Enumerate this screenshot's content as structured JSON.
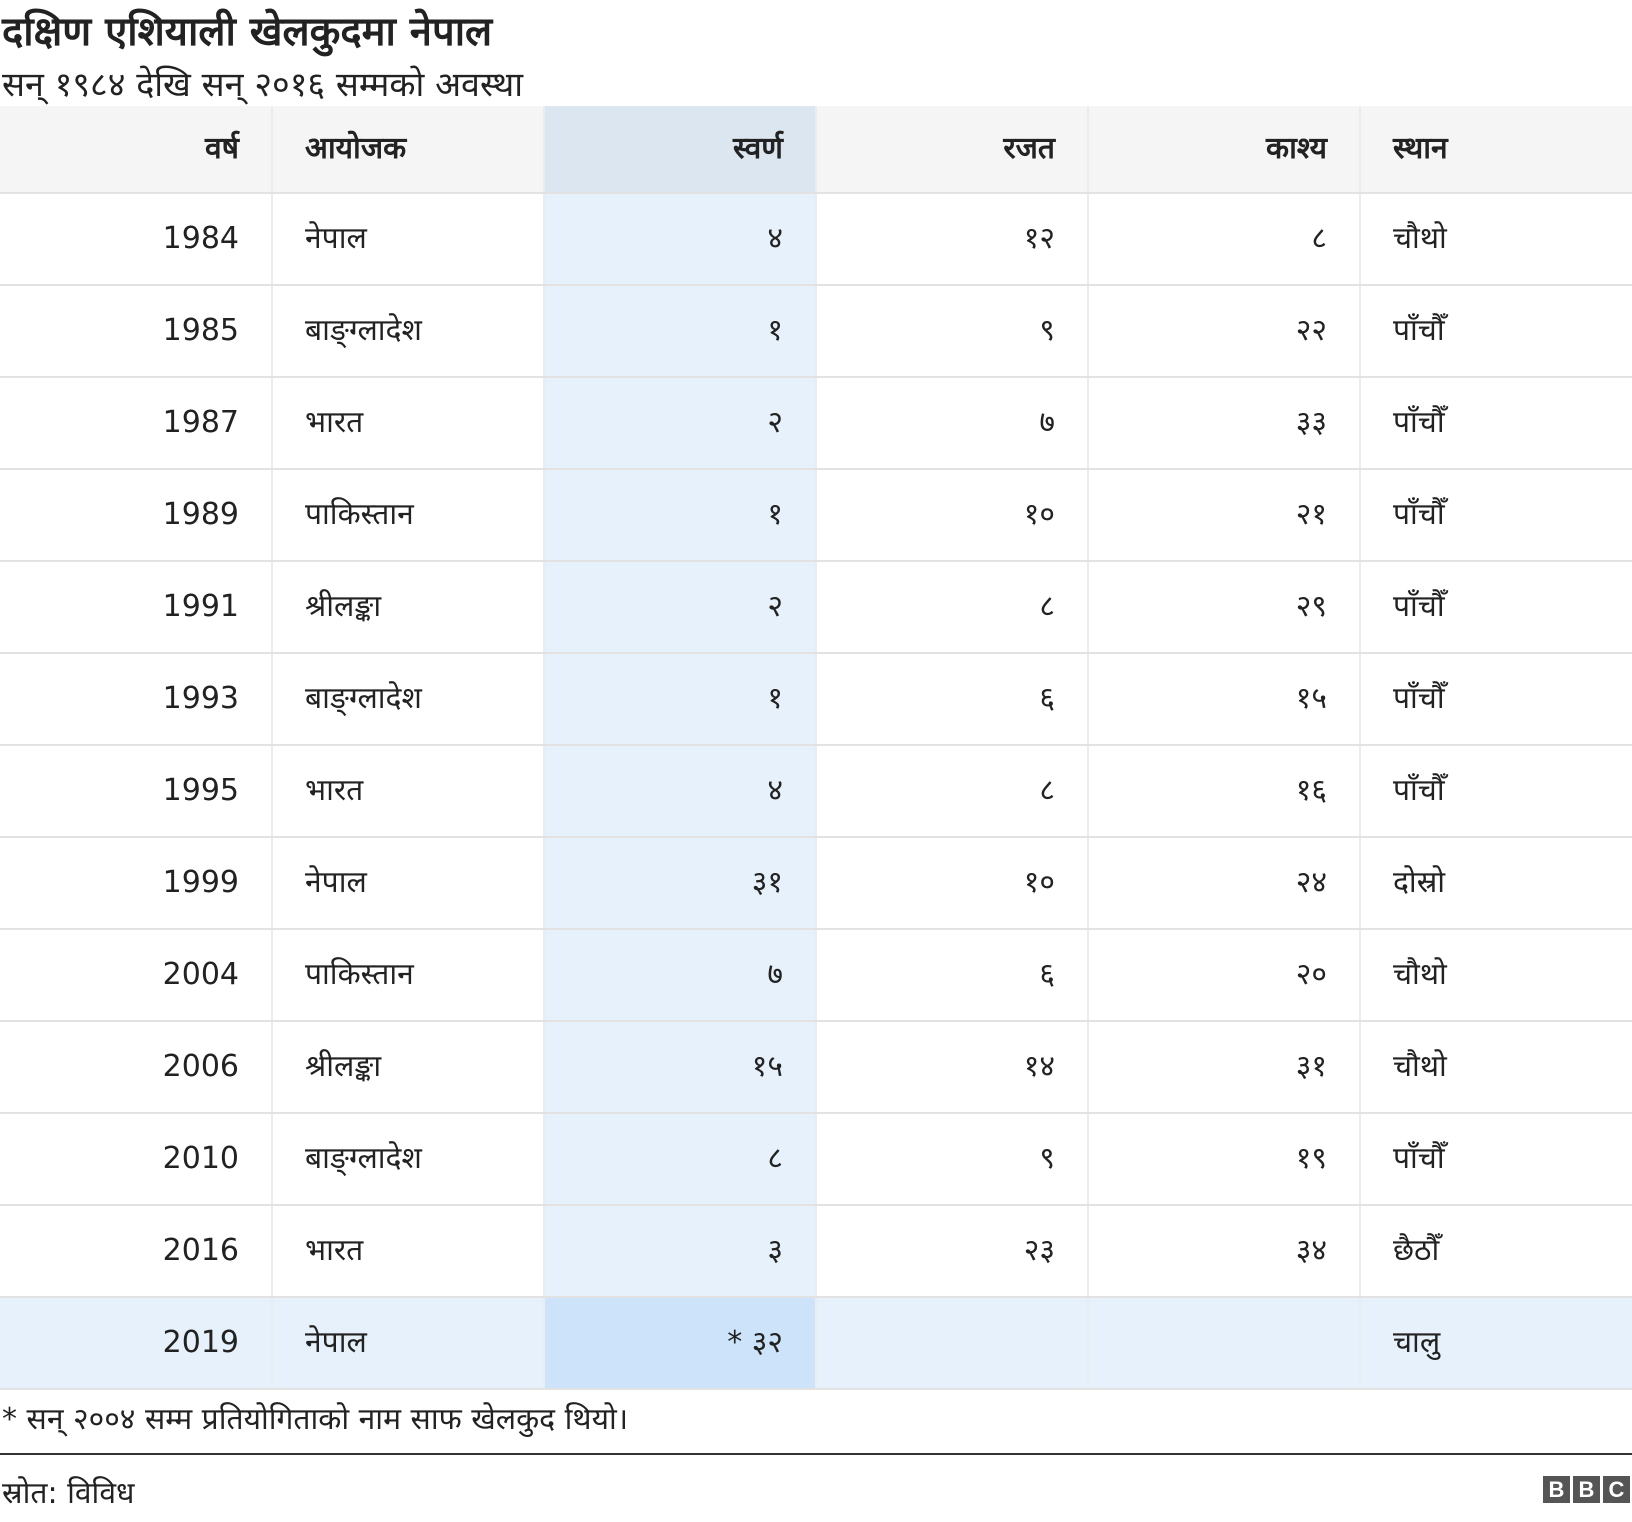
{
  "title": "दक्षिण एशियाली खेलकुदमा नेपाल",
  "subtitle": "सन् १९८४ देखि सन् २०१६ सम्मको अवस्था",
  "chart_data": {
    "type": "table",
    "columns": [
      "वर्ष",
      "आयोजक",
      "स्वर्ण",
      "रजत",
      "काश्य",
      "स्थान"
    ],
    "highlighted_column": "स्वर्ण",
    "rows": [
      [
        "1984",
        "नेपाल",
        "४",
        "१२",
        "८",
        "चौथो"
      ],
      [
        "1985",
        "बाङ्ग्लादेश",
        "१",
        "९",
        "२२",
        "पाँचौँ"
      ],
      [
        "1987",
        "भारत",
        "२",
        "७",
        "३३",
        "पाँचौँ"
      ],
      [
        "1989",
        "पाकिस्तान",
        "१",
        "१०",
        "२१",
        "पाँचौँ"
      ],
      [
        "1991",
        "श्रीलङ्का",
        "२",
        "८",
        "२९",
        "पाँचौँ"
      ],
      [
        "1993",
        "बाङ्ग्लादेश",
        "१",
        "६",
        "१५",
        "पाँचौँ"
      ],
      [
        "1995",
        "भारत",
        "४",
        "८",
        "१६",
        "पाँचौँ"
      ],
      [
        "1999",
        "नेपाल",
        "३१",
        "१०",
        "२४",
        "दोस्रो"
      ],
      [
        "2004",
        "पाकिस्तान",
        "७",
        "६",
        "२०",
        "चौथो"
      ],
      [
        "2006",
        "श्रीलङ्का",
        "१५",
        "१४",
        "३१",
        "चौथो"
      ],
      [
        "2010",
        "बाङ्ग्लादेश",
        "८",
        "९",
        "१९",
        "पाँचौँ"
      ],
      [
        "2016",
        "भारत",
        "३",
        "२३",
        "३४",
        "छैठौँ"
      ],
      [
        "2019",
        "नेपाल",
        "* ३२",
        "",
        "",
        "चालु"
      ]
    ],
    "highlighted_row": "2019"
  },
  "footnote": "* सन् २००४ सम्म प्रतियोगिताको नाम साफ खेलकुद थियो।",
  "source": "स्रोत: विविध",
  "logo": [
    "B",
    "B",
    "C"
  ],
  "colors": {
    "header_bg": "#f5f5f5",
    "highlight_column": "#e6f1fc",
    "highlight_header": "#dbe6f1",
    "highlight_cell": "#cde3f9"
  }
}
